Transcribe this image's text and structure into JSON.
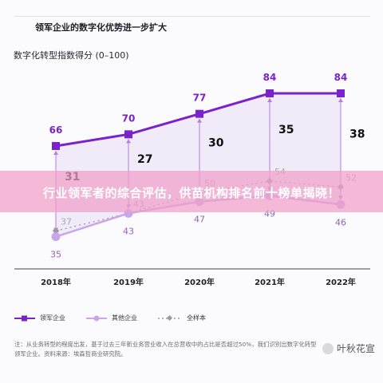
{
  "header": {
    "title": "领军企业的数字化优势进一步扩大"
  },
  "chart_data": {
    "type": "line",
    "subtitle": "数字化转型指数得分 (0–100)",
    "categories": [
      "2018年",
      "2019年",
      "2020年",
      "2021年",
      "2022年"
    ],
    "series": [
      {
        "name": "领军企业",
        "values": [
          66,
          70,
          77,
          84,
          84
        ],
        "color": "#7a22cc"
      },
      {
        "name": "其他企业",
        "values": [
          35,
          43,
          47,
          49,
          46
        ],
        "color": "#c9a6ea"
      },
      {
        "name": "全样本",
        "values": [
          37,
          43,
          50,
          54,
          52
        ],
        "color": "#b0b0b8"
      }
    ],
    "gaps": [
      31,
      27,
      30,
      35,
      38
    ],
    "ylim": [
      20,
      100
    ]
  },
  "note": "注：从业务转型的程度出发，基于过去三年新业务营业收入在总营收中的占比是否超过50%，我们识别出数字化转型领军企业。资料来源：埃森哲商业研究院。",
  "banner": {
    "text": "行业领军者的综合评估，供苗机构排名前十榜单揭晓！"
  },
  "watermark": {
    "text": "叶秋花宣"
  }
}
